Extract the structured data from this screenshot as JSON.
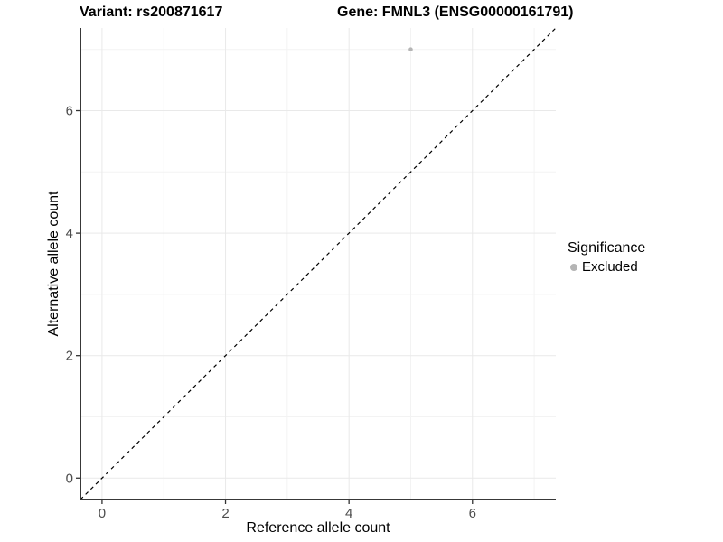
{
  "chart_data": {
    "type": "scatter",
    "title_left": "Variant: rs200871617",
    "title_right": "Gene: FMNL3 (ENSG00000161791)",
    "xlabel": "Reference allele count",
    "ylabel": "Alternative allele count",
    "xlim": [
      -0.35,
      7.35
    ],
    "ylim": [
      -0.35,
      7.35
    ],
    "x_major_ticks": [
      0,
      2,
      4,
      6
    ],
    "y_major_ticks": [
      0,
      2,
      4,
      6
    ],
    "x_minor_ticks": [
      1,
      3,
      5,
      7
    ],
    "y_minor_ticks": [
      1,
      3,
      5,
      7
    ],
    "grid": true,
    "series": [
      {
        "name": "Excluded",
        "color": "#b5b5b5",
        "points": [
          {
            "x": 5,
            "y": 7
          }
        ]
      }
    ],
    "identity_line": {
      "slope": 1,
      "intercept": 0,
      "style": "dashed",
      "color": "#000000"
    },
    "legend": {
      "title": "Significance",
      "position": "right",
      "items": [
        {
          "label": "Excluded",
          "color": "#b5b5b5"
        }
      ]
    },
    "colors": {
      "background": "#ffffff",
      "grid_major": "#e9e9e9",
      "grid_minor": "#f3f3f3",
      "axis_line": "#383838",
      "tick_mark": "#333333",
      "tick_label": "#4d4d4d"
    }
  }
}
